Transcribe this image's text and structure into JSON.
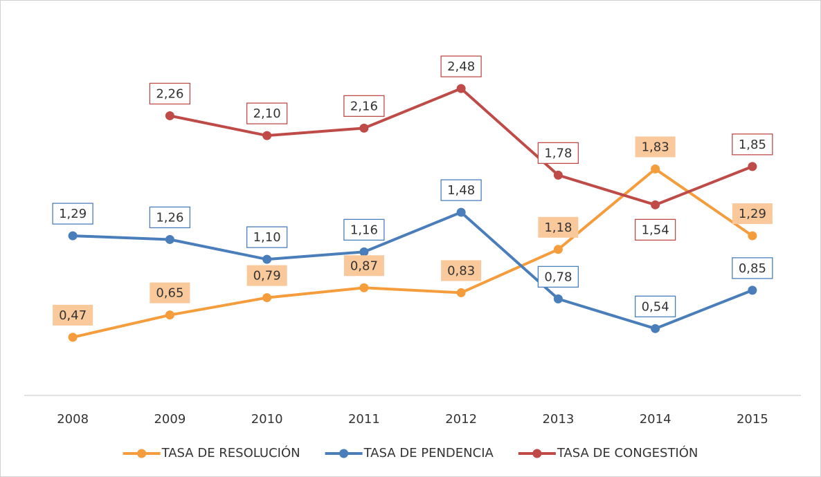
{
  "chart_data": {
    "type": "line",
    "categories": [
      "2008",
      "2009",
      "2010",
      "2011",
      "2012",
      "2013",
      "2014",
      "2015"
    ],
    "ylim": [
      0,
      3
    ],
    "legend": "bottom",
    "series": [
      {
        "name": "TASA DE RESOLUCIÓN",
        "color": "#f59d3d",
        "label_fill": "#f9c89b",
        "values": [
          0.47,
          0.65,
          0.79,
          0.87,
          0.83,
          1.18,
          1.83,
          1.29
        ],
        "value_labels": [
          "0,47",
          "0,65",
          "0,79",
          "0,87",
          "0,83",
          "1,18",
          "1,83",
          "1,29"
        ]
      },
      {
        "name": "TASA DE PENDENCIA",
        "color": "#4a7ebb",
        "values": [
          1.29,
          1.26,
          1.1,
          1.16,
          1.48,
          0.78,
          0.54,
          0.85
        ],
        "value_labels": [
          "1,29",
          "1,26",
          "1,10",
          "1,16",
          "1,48",
          "0,78",
          "0,54",
          "0,85"
        ]
      },
      {
        "name": "TASA DE CONGESTIÓN",
        "color": "#be4b48",
        "values": [
          null,
          2.26,
          2.1,
          2.16,
          2.48,
          1.78,
          1.54,
          1.85
        ],
        "value_labels": [
          null,
          "2,26",
          "2,10",
          "2,16",
          "2,48",
          "1,78",
          "1,54",
          "1,85"
        ]
      }
    ]
  }
}
